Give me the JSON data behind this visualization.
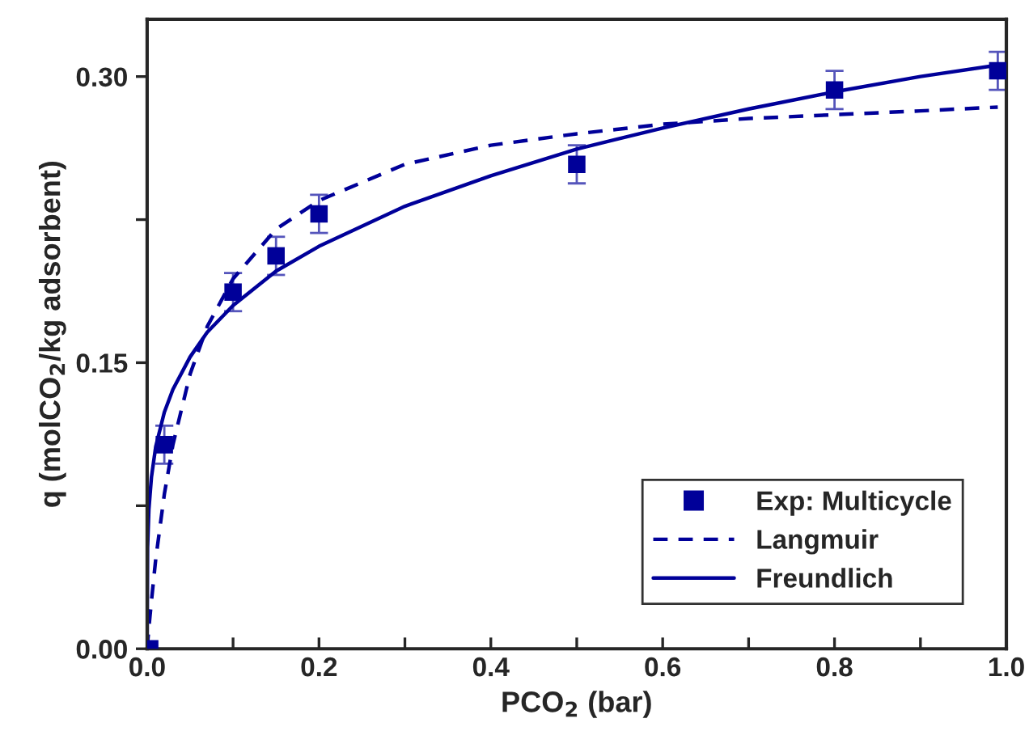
{
  "chart_data": {
    "type": "line",
    "xlabel": "PCO$_{2}$ (bar)",
    "ylabel": "q (molCO$_{2}$/kg adsorbent)",
    "xlim": [
      0,
      1.0
    ],
    "ylim": [
      0,
      0.33
    ],
    "xticks": [
      {
        "value": 0,
        "label": "0.0"
      },
      {
        "value": 0.1,
        "label": null
      },
      {
        "value": 0.2,
        "label": "0.2"
      },
      {
        "value": 0.3,
        "label": null
      },
      {
        "value": 0.4,
        "label": "0.4"
      },
      {
        "value": 0.5,
        "label": null
      },
      {
        "value": 0.6,
        "label": "0.6"
      },
      {
        "value": 0.7,
        "label": null
      },
      {
        "value": 0.8,
        "label": "0.8"
      },
      {
        "value": 0.9,
        "label": null
      },
      {
        "value": 1.0,
        "label": "1.0"
      }
    ],
    "yticks": [
      {
        "value": 0,
        "label": "0.00"
      },
      {
        "value": 0.075,
        "label": null
      },
      {
        "value": 0.15,
        "label": "0.15"
      },
      {
        "value": 0.225,
        "label": null
      },
      {
        "value": 0.3,
        "label": "0.30"
      }
    ],
    "grid": false,
    "legend": "bottom right",
    "series": [
      {
        "name": "Exp: Multicycle",
        "type": "scatter",
        "marker": "square",
        "color": "#000099",
        "x": [
          0.003,
          0.02,
          0.1,
          0.15,
          0.2,
          0.5,
          0.8,
          0.99
        ],
        "values": [
          0.0,
          0.107,
          0.187,
          0.206,
          0.228,
          0.254,
          0.293,
          0.303
        ],
        "errors": [
          null,
          0.01,
          0.01,
          0.01,
          0.01,
          0.01,
          0.01,
          0.01
        ]
      },
      {
        "name": "Langmuir",
        "line_style": "dashed",
        "color": "#000099",
        "x": [
          0,
          0.002,
          0.005,
          0.01,
          0.02,
          0.03,
          0.05,
          0.07,
          0.1,
          0.15,
          0.2,
          0.3,
          0.4,
          0.5,
          0.6,
          0.7,
          0.8,
          0.9,
          0.99
        ],
        "values": [
          0,
          0.011,
          0.025,
          0.047,
          0.081,
          0.107,
          0.144,
          0.169,
          0.194,
          0.22,
          0.235,
          0.254,
          0.264,
          0.27,
          0.275,
          0.278,
          0.28,
          0.282,
          0.284
        ]
      },
      {
        "name": "Freundlich",
        "line_style": "solid",
        "color": "#000099",
        "x": [
          0,
          0.0005,
          0.002,
          0.005,
          0.01,
          0.02,
          0.03,
          0.05,
          0.07,
          0.1,
          0.15,
          0.2,
          0.3,
          0.4,
          0.5,
          0.6,
          0.7,
          0.8,
          0.9,
          0.99
        ],
        "values": [
          0,
          0.053,
          0.073,
          0.09,
          0.106,
          0.124,
          0.136,
          0.153,
          0.166,
          0.18,
          0.198,
          0.211,
          0.232,
          0.248,
          0.262,
          0.273,
          0.283,
          0.292,
          0.3,
          0.306
        ]
      }
    ]
  }
}
